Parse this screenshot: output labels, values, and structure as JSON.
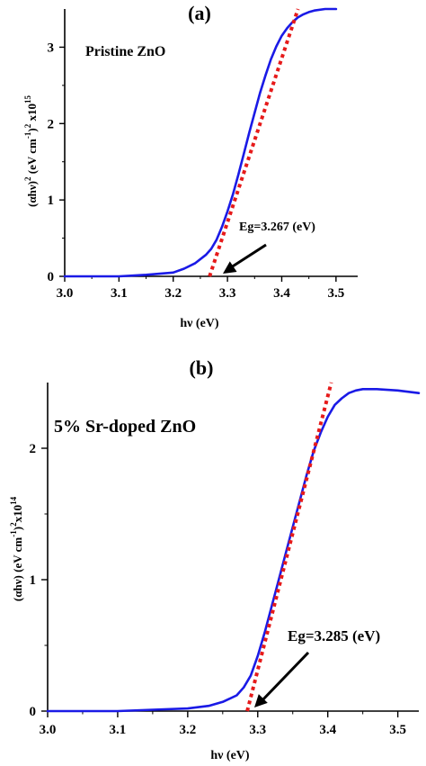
{
  "chart_data": [
    {
      "type": "line",
      "panel_label": "(a)",
      "annotation": "Pristine ZnO",
      "xlabel": "hν (eV)",
      "ylabel": {
        "main": "(αhν)",
        "sq1": "2",
        "mid": " (eV cm",
        "exp1": "-1",
        "close": ")",
        "sq2": "2",
        "x10": " x10",
        "exp2": "15"
      },
      "xlim": [
        3.0,
        3.54
      ],
      "ylim": [
        0,
        3.5
      ],
      "x_ticks": [
        "3.0",
        "3.1",
        "3.2",
        "3.3",
        "3.4",
        "3.5"
      ],
      "y_ticks": [
        "0",
        "1",
        "2",
        "3"
      ],
      "x_tick_values": [
        3.0,
        3.1,
        3.2,
        3.3,
        3.4,
        3.5
      ],
      "y_tick_values": [
        0,
        1,
        2,
        3
      ],
      "series": [
        {
          "color": "#1a1ae6",
          "style": "solid",
          "x": [
            3.0,
            3.1,
            3.15,
            3.2,
            3.22,
            3.24,
            3.26,
            3.27,
            3.28,
            3.29,
            3.3,
            3.31,
            3.32,
            3.33,
            3.34,
            3.35,
            3.36,
            3.37,
            3.38,
            3.39,
            3.4,
            3.41,
            3.42,
            3.43,
            3.44,
            3.45,
            3.46,
            3.48,
            3.5
          ],
          "y": [
            0.0,
            0.0,
            0.02,
            0.05,
            0.1,
            0.17,
            0.28,
            0.36,
            0.48,
            0.65,
            0.85,
            1.07,
            1.33,
            1.6,
            1.88,
            2.14,
            2.4,
            2.63,
            2.84,
            3.01,
            3.15,
            3.25,
            3.33,
            3.39,
            3.43,
            3.46,
            3.48,
            3.5,
            3.5
          ]
        },
        {
          "color": "#e61a1a",
          "style": "dotted",
          "x": [
            3.267,
            3.43
          ],
          "y": [
            0.0,
            3.5
          ]
        }
      ],
      "arrow_label": "Eg=3.267 (eV)",
      "arrow_target": {
        "x": 3.267,
        "y": 0
      }
    },
    {
      "type": "line",
      "panel_label": "(b)",
      "annotation": "5% Sr-doped ZnO",
      "xlabel": "hν (eV)",
      "ylabel": {
        "main": "(αhν)",
        "sq1": "",
        "mid": " (eV cm",
        "exp1": "-1",
        "close": ")",
        "sq2": "2",
        "x10": "x10",
        "exp2": "14"
      },
      "xlim": [
        3.0,
        3.53
      ],
      "ylim": [
        0,
        2.5
      ],
      "x_ticks": [
        "3.0",
        "3.1",
        "3.2",
        "3.3",
        "3.4",
        "3.5"
      ],
      "y_ticks": [
        "0",
        "1",
        "2"
      ],
      "x_tick_values": [
        3.0,
        3.1,
        3.2,
        3.3,
        3.4,
        3.5
      ],
      "y_tick_values": [
        0,
        1,
        2
      ],
      "series": [
        {
          "color": "#1a1ae6",
          "style": "solid",
          "x": [
            3.0,
            3.1,
            3.15,
            3.2,
            3.23,
            3.25,
            3.27,
            3.28,
            3.29,
            3.3,
            3.31,
            3.32,
            3.33,
            3.34,
            3.35,
            3.36,
            3.37,
            3.38,
            3.39,
            3.4,
            3.41,
            3.42,
            3.43,
            3.44,
            3.45,
            3.47,
            3.5,
            3.53
          ],
          "y": [
            0.0,
            0.0,
            0.01,
            0.02,
            0.04,
            0.07,
            0.12,
            0.18,
            0.27,
            0.42,
            0.6,
            0.8,
            1.0,
            1.2,
            1.4,
            1.6,
            1.8,
            1.98,
            2.12,
            2.24,
            2.33,
            2.38,
            2.42,
            2.44,
            2.45,
            2.45,
            2.44,
            2.42
          ]
        },
        {
          "color": "#e61a1a",
          "style": "dotted",
          "x": [
            3.285,
            3.405
          ],
          "y": [
            0.0,
            2.55
          ]
        }
      ],
      "arrow_label": "Eg=3.285 (eV)",
      "arrow_target": {
        "x": 3.285,
        "y": 0
      }
    }
  ]
}
